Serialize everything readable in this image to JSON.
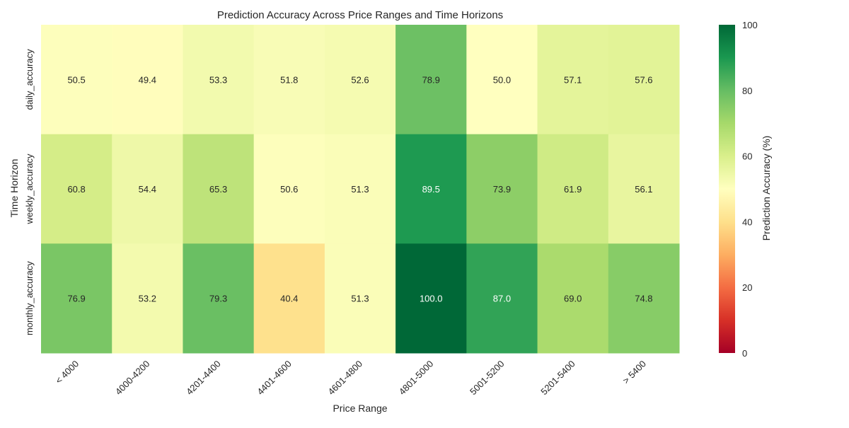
{
  "chart_data": {
    "type": "heatmap",
    "title": "Prediction Accuracy Across Price Ranges and Time Horizons",
    "xlabel": "Price Range",
    "ylabel": "Time Horizon",
    "x_categories": [
      "< 4000",
      "4000-4200",
      "4201-4400",
      "4401-4600",
      "4601-4800",
      "4801-5000",
      "5001-5200",
      "5201-5400",
      "> 5400"
    ],
    "y_categories": [
      "daily_accuracy",
      "weekly_accuracy",
      "monthly_accuracy"
    ],
    "values": [
      [
        50.5,
        49.4,
        53.3,
        51.8,
        52.6,
        78.9,
        50.0,
        57.1,
        57.6
      ],
      [
        60.8,
        54.4,
        65.3,
        50.6,
        51.3,
        89.5,
        73.9,
        61.9,
        56.1
      ],
      [
        76.9,
        53.2,
        79.3,
        40.4,
        51.3,
        100.0,
        87.0,
        69.0,
        74.8
      ]
    ],
    "colormap": "RdYlGn",
    "colormap_stops": [
      "#a50026",
      "#d73027",
      "#f46d43",
      "#fdae61",
      "#fee08b",
      "#ffffbf",
      "#d9ef8b",
      "#a6d96a",
      "#66bd63",
      "#1a9850",
      "#006837"
    ],
    "vmin": 0,
    "vmax": 100,
    "colorbar": {
      "label": "Prediction Accuracy (%)",
      "ticks": [
        "0",
        "20",
        "40",
        "60",
        "80",
        "100"
      ]
    },
    "grid": false
  }
}
